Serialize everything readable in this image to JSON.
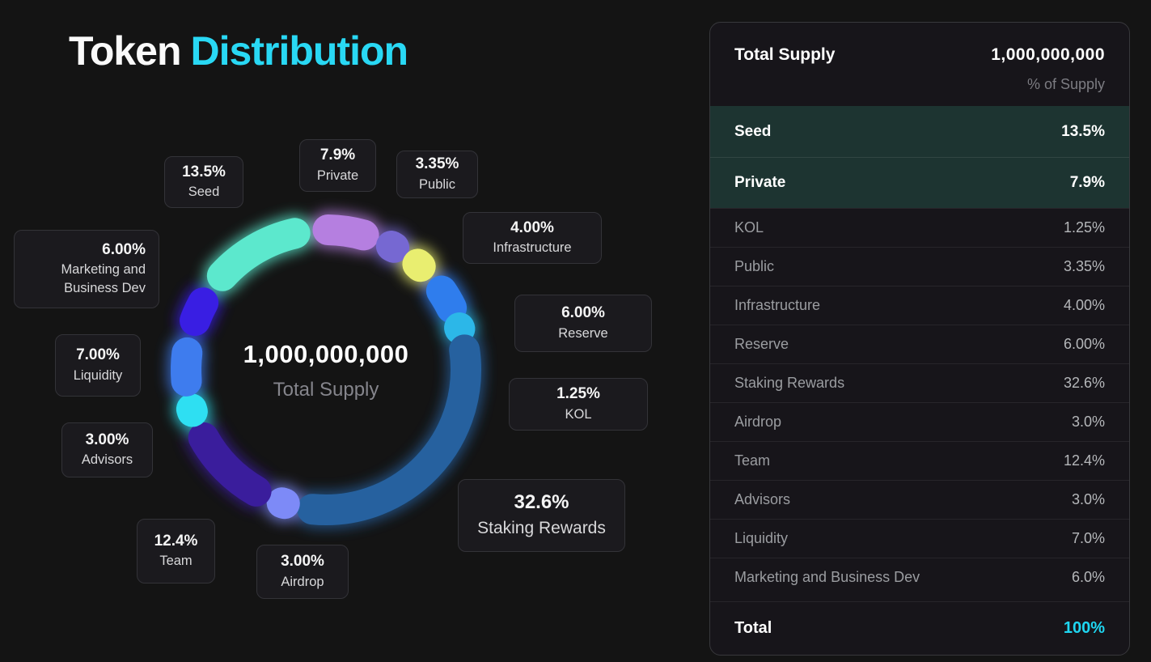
{
  "page": {
    "background": "#141414",
    "accent_color": "#29d8f4"
  },
  "header": {
    "title_primary": "Token",
    "title_accent": "Distribution"
  },
  "chart_data": {
    "type": "pie",
    "subtype": "donut",
    "title": "Token Distribution",
    "center_value": "1,000,000,000",
    "center_label": "Total Supply",
    "start_angle": -6,
    "legend_position": "callouts-around-ring",
    "segments": [
      {
        "name": "Private",
        "pct_label": "7.9%",
        "value": 7.9,
        "color": "#b57fe0"
      },
      {
        "name": "Public",
        "pct_label": "3.35%",
        "value": 3.35,
        "color": "#7668d2"
      },
      {
        "name": "Infrastructure",
        "pct_label": "4.00%",
        "value": 4.0,
        "color": "#e9ee70"
      },
      {
        "name": "Reserve",
        "pct_label": "6.00%",
        "value": 6.0,
        "color": "#2f7ded"
      },
      {
        "name": "KOL",
        "pct_label": "1.25%",
        "value": 1.25,
        "color": "#2cb7e8"
      },
      {
        "name": "Staking Rewards",
        "pct_label": "32.6%",
        "value": 32.6,
        "color": "#26619f"
      },
      {
        "name": "Airdrop",
        "pct_label": "3.00%",
        "value": 3.0,
        "color": "#7d8af7"
      },
      {
        "name": "Team",
        "pct_label": "12.4%",
        "value": 12.4,
        "color": "#3a1d9c"
      },
      {
        "name": "Advisors",
        "pct_label": "3.00%",
        "value": 3.0,
        "color": "#2edff2"
      },
      {
        "name": "Liquidity",
        "pct_label": "7.00%",
        "value": 7.0,
        "color": "#3e7cee"
      },
      {
        "name": "Marketing and Business Dev",
        "pct_label": "6.00%",
        "value": 6.0,
        "color": "#391ee3"
      },
      {
        "name": "Seed",
        "pct_label": "13.5%",
        "value": 13.5,
        "color": "#5ce8cd"
      }
    ]
  },
  "table": {
    "header_label": "Total Supply",
    "header_value": "1,000,000,000",
    "subheader": "% of Supply",
    "rows": [
      {
        "label": "Seed",
        "value": "13.5%",
        "highlighted": true
      },
      {
        "label": "Private",
        "value": "7.9%",
        "highlighted": true
      },
      {
        "label": "KOL",
        "value": "1.25%",
        "highlighted": false
      },
      {
        "label": "Public",
        "value": "3.35%",
        "highlighted": false
      },
      {
        "label": "Infrastructure",
        "value": "4.00%",
        "highlighted": false
      },
      {
        "label": "Reserve",
        "value": "6.00%",
        "highlighted": false
      },
      {
        "label": "Staking Rewards",
        "value": "32.6%",
        "highlighted": false
      },
      {
        "label": "Airdrop",
        "value": "3.0%",
        "highlighted": false
      },
      {
        "label": "Team",
        "value": "12.4%",
        "highlighted": false
      },
      {
        "label": "Advisors",
        "value": "3.0%",
        "highlighted": false
      },
      {
        "label": "Liquidity",
        "value": "7.0%",
        "highlighted": false
      },
      {
        "label": "Marketing and Business Dev",
        "value": "6.0%",
        "highlighted": false
      }
    ],
    "total_label": "Total",
    "total_value": "100%",
    "total_accent_color": "#1fd7f2"
  }
}
